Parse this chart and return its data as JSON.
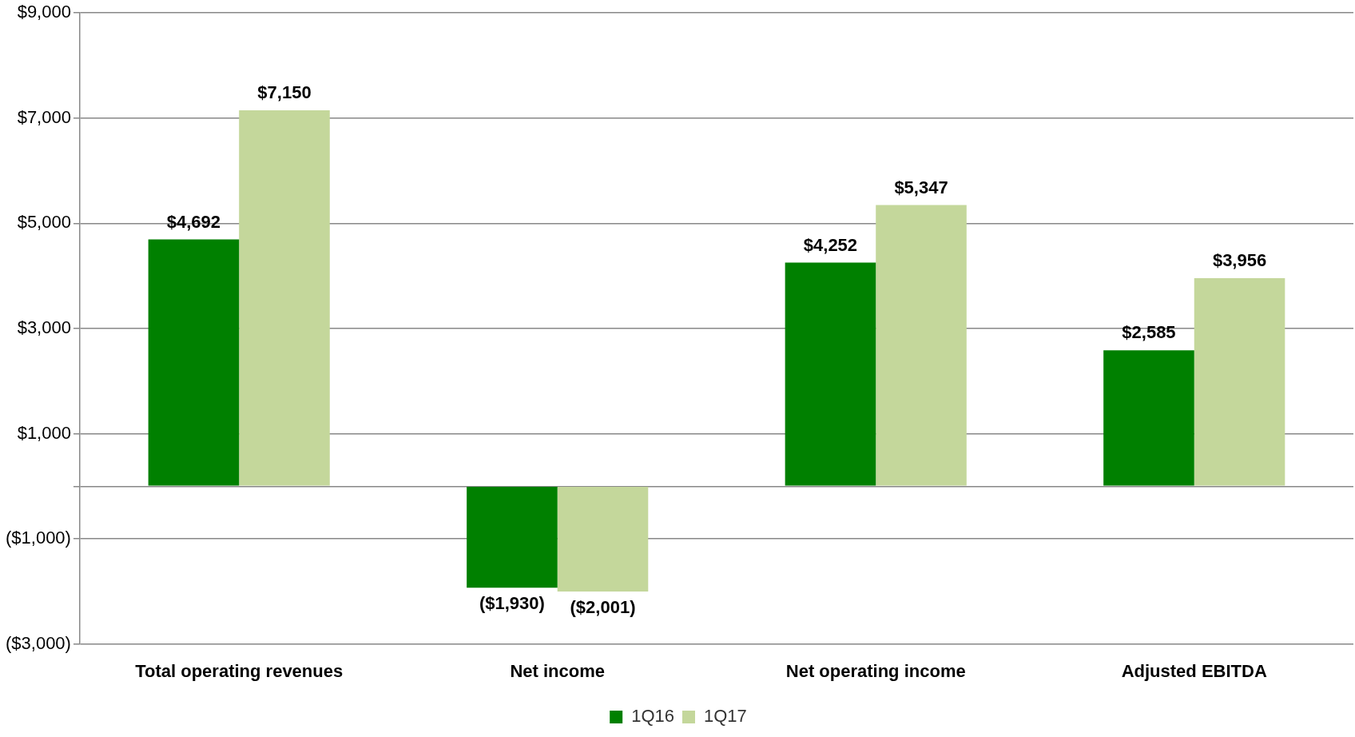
{
  "chart_data": {
    "type": "bar",
    "categories": [
      "Total operating revenues",
      "Net income",
      "Net operating income",
      "Adjusted EBITDA"
    ],
    "series": [
      {
        "name": "1Q16",
        "color": "#008000",
        "values": [
          4692,
          -1930,
          4252,
          2585
        ],
        "value_labels": [
          "$4,692",
          "($1,930)",
          "$4,252",
          "$2,585"
        ]
      },
      {
        "name": "1Q17",
        "color": "#c4d79b",
        "values": [
          7150,
          -2001,
          5347,
          3956
        ],
        "value_labels": [
          "$7,150",
          "($2,001)",
          "$5,347",
          "$3,956"
        ]
      }
    ],
    "ylim": [
      -3000,
      9000
    ],
    "yticks": [
      {
        "value": -3000,
        "label": "($3,000)"
      },
      {
        "value": -1000,
        "label": "($1,000)"
      },
      {
        "value": 0,
        "label": null
      },
      {
        "value": 1000,
        "label": "$1,000"
      },
      {
        "value": 3000,
        "label": "$3,000"
      },
      {
        "value": 5000,
        "label": "$5,000"
      },
      {
        "value": 7000,
        "label": "$7,000"
      },
      {
        "value": 9000,
        "label": "$9,000"
      }
    ],
    "grid": "y",
    "legend": "bottom"
  }
}
